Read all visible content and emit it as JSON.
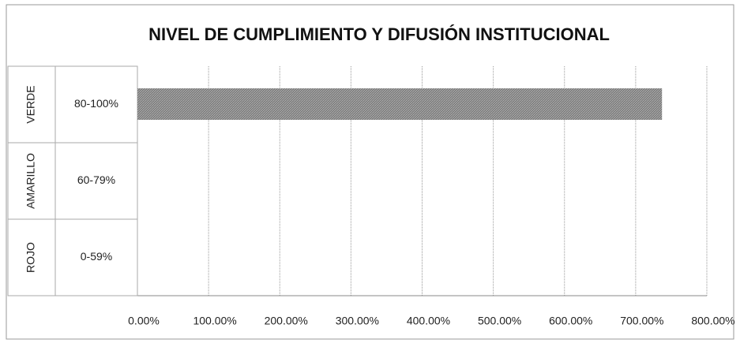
{
  "chart_data": {
    "type": "bar",
    "orientation": "horizontal",
    "title": "NIVEL DE CUMPLIMIENTO Y DIFUSIÓN INSTITUCIONAL",
    "groups": [
      "VERDE",
      "AMARILLO",
      "ROJO"
    ],
    "categories": [
      "80-100%",
      "60-79%",
      "0-59%"
    ],
    "values": [
      737,
      0,
      0
    ],
    "color": "#8a8a8a",
    "xlim": [
      0,
      800
    ],
    "xticks": [
      {
        "value": 0,
        "label": "0.00%"
      },
      {
        "value": 100,
        "label": "100.00%"
      },
      {
        "value": 200,
        "label": "200.00%"
      },
      {
        "value": 300,
        "label": "300.00%"
      },
      {
        "value": 400,
        "label": "400.00%"
      },
      {
        "value": 500,
        "label": "500.00%"
      },
      {
        "value": 600,
        "label": "600.00%"
      },
      {
        "value": 700,
        "label": "700.00%"
      },
      {
        "value": 800,
        "label": "800.00%"
      }
    ],
    "grid": true
  }
}
